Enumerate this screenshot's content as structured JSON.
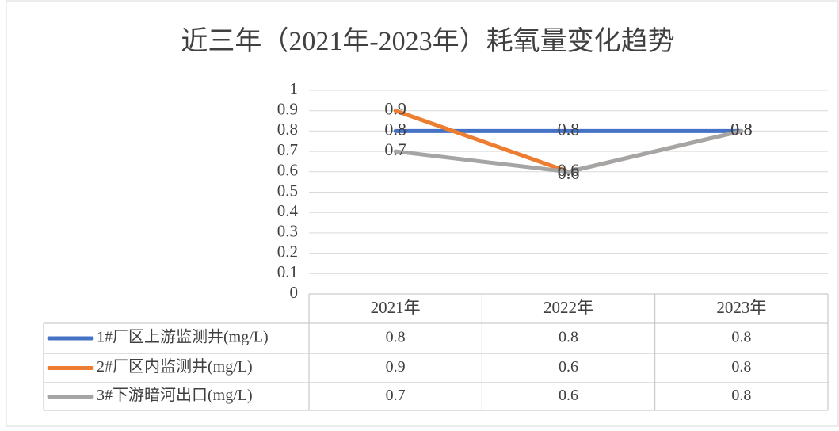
{
  "chart_data": {
    "type": "line",
    "title": "近三年（2021年-2023年）耗氧量变化趋势",
    "categories": [
      "2021年",
      "2022年",
      "2023年"
    ],
    "series": [
      {
        "name": "1#厂区上游监测井(mg/L)",
        "color": "#4472c4",
        "values": [
          0.8,
          0.8,
          0.8
        ]
      },
      {
        "name": "2#厂区内监测井(mg/L)",
        "color": "#ed7d31",
        "values": [
          0.9,
          0.6,
          0.8
        ]
      },
      {
        "name": "3#下游暗河出口(mg/L)",
        "color": "#a5a5a5",
        "values": [
          0.7,
          0.6,
          0.8
        ]
      }
    ],
    "ylim": [
      0,
      1
    ],
    "yticks": [
      0,
      0.1,
      0.2,
      0.3,
      0.4,
      0.5,
      0.6,
      0.7,
      0.8,
      0.9,
      1
    ],
    "grid": true
  }
}
